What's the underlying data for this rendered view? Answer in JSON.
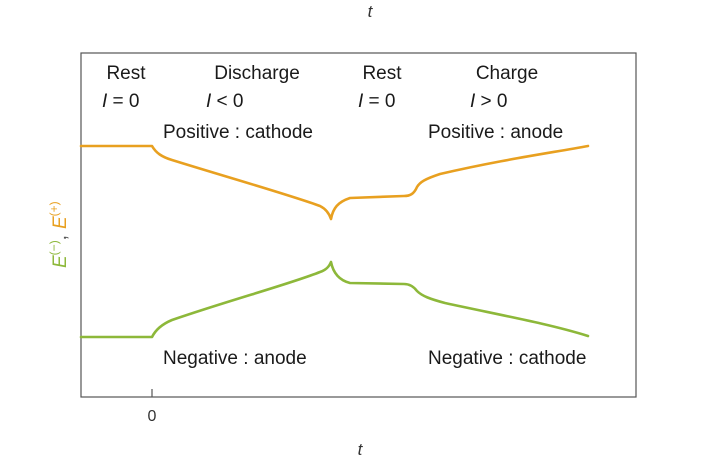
{
  "figure": {
    "top_axis_label": "t",
    "bottom_axis_label": "t",
    "x_tick_label": "0",
    "y_axis_label": {
      "neg_symbol": "E",
      "neg_sup": "(−)",
      "separator": ",",
      "pos_symbol": "E",
      "pos_sup": "(+)"
    },
    "phases": [
      {
        "name": "Rest",
        "current_var": "I",
        "current_rel": " = 0"
      },
      {
        "name": "Discharge",
        "current_var": "I",
        "current_rel": " < 0"
      },
      {
        "name": "Rest",
        "current_var": "I",
        "current_rel": " = 0"
      },
      {
        "name": "Charge",
        "current_var": "I",
        "current_rel": " > 0"
      }
    ],
    "electrode_labels": {
      "discharge_positive": "Positive : cathode",
      "charge_positive": "Positive : anode",
      "discharge_negative": "Negative : anode",
      "charge_negative": "Negative : cathode"
    }
  },
  "colors": {
    "positive_curve": "#E8A020",
    "negative_curve": "#8DB83A",
    "frame": "#555555"
  }
}
